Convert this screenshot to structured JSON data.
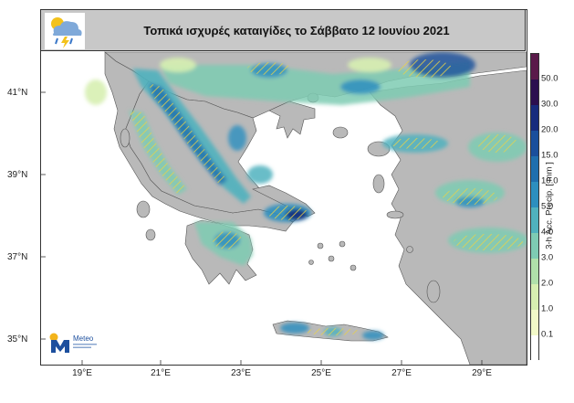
{
  "title": "Τοπικά ισχυρές καταιγίδες το Σάββατο 12 Ιουνίου 2021",
  "logos": {
    "weather": "cloud-rain-lightning-icon",
    "meteo": "Meteo"
  },
  "colors": {
    "land": "#b9b9b9",
    "sea": "#ffffff",
    "storm_hatch": "#e8d24a"
  },
  "lat_labels": [
    "41°N",
    "39°N",
    "37°N",
    "35°N"
  ],
  "lon_labels": [
    "19°E",
    "21°E",
    "23°E",
    "25°E",
    "27°E",
    "29°E"
  ],
  "colorbar": {
    "label": "3-h Acc. Precip. [ mm ]",
    "ticks": [
      "0.1",
      "1.0",
      "2.0",
      "3.0",
      "4.0",
      "5.0",
      "10.0",
      "15.0",
      "20.0",
      "30.0",
      "50.0"
    ],
    "colors": [
      "#ffffff",
      "#f2f9c8",
      "#d7efb1",
      "#b0e0aa",
      "#7ecbb3",
      "#50b1be",
      "#2d8fbf",
      "#1f6fae",
      "#1a4f9c",
      "#172b7d",
      "#2b0f4f",
      "#5a1a4a"
    ]
  }
}
